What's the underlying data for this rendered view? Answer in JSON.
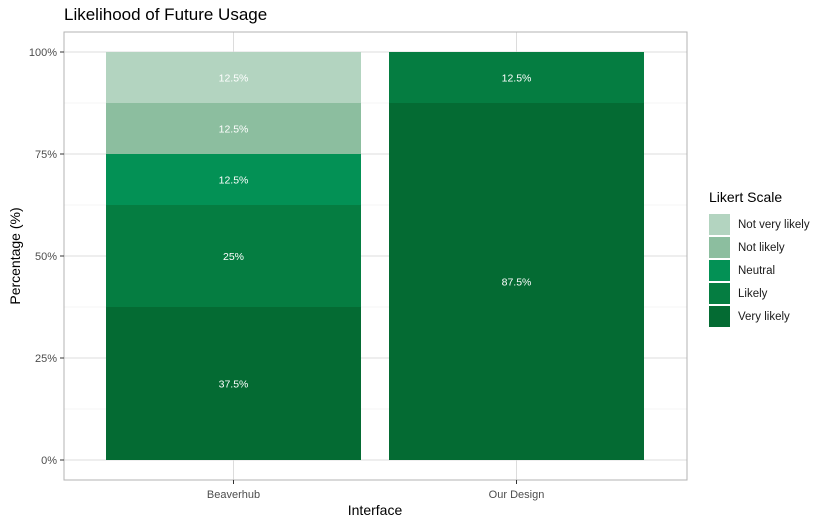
{
  "chart_data": {
    "type": "bar",
    "stacked": true,
    "title": "Likelihood of Future Usage",
    "xlabel": "Interface",
    "ylabel": "Percentage (%)",
    "categories": [
      "Beaverhub",
      "Our Design"
    ],
    "ylim": [
      0,
      100
    ],
    "yticks": [
      0,
      25,
      50,
      75,
      100
    ],
    "ytick_labels": [
      "0%",
      "25%",
      "50%",
      "75%",
      "100%"
    ],
    "grid": true,
    "legend_position": "right",
    "legend_title": "Likert Scale",
    "series": [
      {
        "name": "Very likely",
        "color": "#046b33",
        "values": [
          37.5,
          87.5
        ],
        "labels": [
          "37.5%",
          "87.5%"
        ]
      },
      {
        "name": "Likely",
        "color": "#057d41",
        "values": [
          25,
          0
        ],
        "labels": [
          "25%",
          ""
        ]
      },
      {
        "name": "Neutral",
        "color": "#039155",
        "values": [
          12.5,
          0
        ],
        "labels": [
          "12.5%",
          ""
        ]
      },
      {
        "name": "Not likely",
        "color": "#8cbe9f",
        "values": [
          12.5,
          0
        ],
        "labels": [
          "12.5%",
          ""
        ]
      },
      {
        "name": "Not very likely",
        "color": "#b3d4c0",
        "values": [
          12.5,
          0
        ],
        "labels": [
          "12.5%",
          ""
        ]
      }
    ],
    "top_segment_override": {
      "category": "Our Design",
      "label": "12.5%",
      "color": "#057d41",
      "value": 12.5
    }
  }
}
